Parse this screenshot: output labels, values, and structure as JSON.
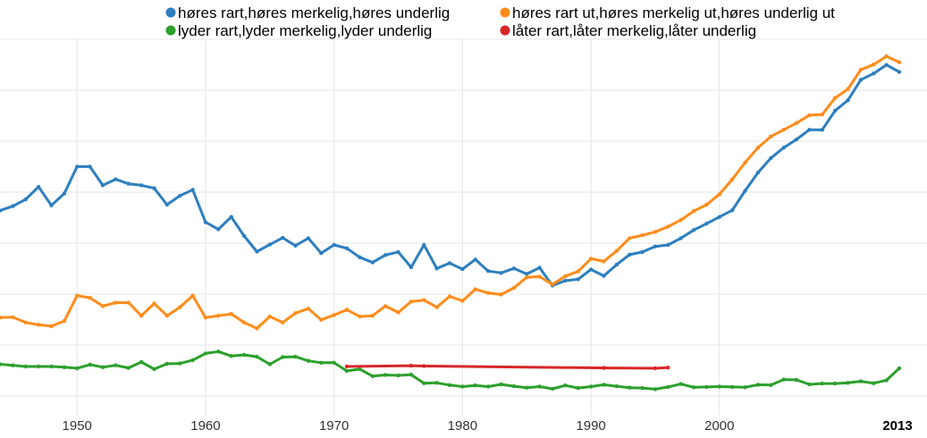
{
  "chart_data": {
    "type": "line",
    "title": "",
    "xlabel": "",
    "ylabel": "",
    "xlim": [
      1944,
      2014
    ],
    "ylim": [
      0,
      1
    ],
    "grid": true,
    "legend_placement": "top",
    "x_ticks": [
      1950,
      1960,
      1970,
      1980,
      1990,
      2000
    ],
    "x_tick_labels": [
      "1950",
      "1960",
      "1970",
      "1980",
      "1990",
      "2000"
    ],
    "x_last_label": "2013",
    "series": [
      {
        "name": "høres rart,høres merkelig,høres underlig",
        "color": "#2d7fbf",
        "points": [
          [
            1944,
            0.55
          ],
          [
            1945,
            0.562
          ],
          [
            1946,
            0.58
          ],
          [
            1947,
            0.614
          ],
          [
            1948,
            0.564
          ],
          [
            1949,
            0.596
          ],
          [
            1950,
            0.668
          ],
          [
            1951,
            0.668
          ],
          [
            1952,
            0.618
          ],
          [
            1953,
            0.634
          ],
          [
            1954,
            0.622
          ],
          [
            1955,
            0.618
          ],
          [
            1956,
            0.61
          ],
          [
            1957,
            0.566
          ],
          [
            1958,
            0.59
          ],
          [
            1959,
            0.606
          ],
          [
            1960,
            0.519
          ],
          [
            1961,
            0.5
          ],
          [
            1962,
            0.533
          ],
          [
            1963,
            0.482
          ],
          [
            1964,
            0.44
          ],
          [
            1965,
            0.459
          ],
          [
            1966,
            0.477
          ],
          [
            1967,
            0.456
          ],
          [
            1968,
            0.476
          ],
          [
            1969,
            0.436
          ],
          [
            1970,
            0.458
          ],
          [
            1971,
            0.449
          ],
          [
            1972,
            0.425
          ],
          [
            1973,
            0.411
          ],
          [
            1974,
            0.431
          ],
          [
            1975,
            0.439
          ],
          [
            1976,
            0.398
          ],
          [
            1977,
            0.458
          ],
          [
            1978,
            0.395
          ],
          [
            1979,
            0.409
          ],
          [
            1980,
            0.393
          ],
          [
            1981,
            0.419
          ],
          [
            1982,
            0.388
          ],
          [
            1983,
            0.383
          ],
          [
            1984,
            0.395
          ],
          [
            1985,
            0.38
          ],
          [
            1986,
            0.397
          ],
          [
            1987,
            0.349
          ],
          [
            1988,
            0.362
          ],
          [
            1989,
            0.366
          ],
          [
            1990,
            0.392
          ],
          [
            1991,
            0.375
          ],
          [
            1992,
            0.405
          ],
          [
            1993,
            0.432
          ],
          [
            1994,
            0.439
          ],
          [
            1995,
            0.454
          ],
          [
            1996,
            0.458
          ],
          [
            1997,
            0.476
          ],
          [
            1998,
            0.498
          ],
          [
            1999,
            0.515
          ],
          [
            2000,
            0.533
          ],
          [
            2001,
            0.551
          ],
          [
            2002,
            0.603
          ],
          [
            2003,
            0.652
          ],
          [
            2004,
            0.691
          ],
          [
            2005,
            0.719
          ],
          [
            2006,
            0.741
          ],
          [
            2007,
            0.767
          ],
          [
            2008,
            0.767
          ],
          [
            2009,
            0.818
          ],
          [
            2010,
            0.846
          ],
          [
            2011,
            0.901
          ],
          [
            2012,
            0.918
          ],
          [
            2013,
            0.941
          ],
          [
            2014,
            0.922
          ]
        ]
      },
      {
        "name": "høres rart ut,høres merkelig ut,høres underlig ut",
        "color": "#ff8c1a",
        "points": [
          [
            1944,
            0.263
          ],
          [
            1945,
            0.264
          ],
          [
            1946,
            0.25
          ],
          [
            1947,
            0.244
          ],
          [
            1948,
            0.24
          ],
          [
            1949,
            0.254
          ],
          [
            1950,
            0.322
          ],
          [
            1951,
            0.316
          ],
          [
            1952,
            0.294
          ],
          [
            1953,
            0.303
          ],
          [
            1954,
            0.303
          ],
          [
            1955,
            0.268
          ],
          [
            1956,
            0.301
          ],
          [
            1957,
            0.268
          ],
          [
            1958,
            0.291
          ],
          [
            1959,
            0.322
          ],
          [
            1960,
            0.263
          ],
          [
            1961,
            0.268
          ],
          [
            1962,
            0.273
          ],
          [
            1963,
            0.25
          ],
          [
            1964,
            0.234
          ],
          [
            1965,
            0.266
          ],
          [
            1966,
            0.25
          ],
          [
            1967,
            0.275
          ],
          [
            1968,
            0.287
          ],
          [
            1969,
            0.257
          ],
          [
            1970,
            0.27
          ],
          [
            1971,
            0.284
          ],
          [
            1972,
            0.266
          ],
          [
            1973,
            0.268
          ],
          [
            1974,
            0.294
          ],
          [
            1975,
            0.277
          ],
          [
            1976,
            0.306
          ],
          [
            1977,
            0.31
          ],
          [
            1978,
            0.291
          ],
          [
            1979,
            0.32
          ],
          [
            1980,
            0.308
          ],
          [
            1981,
            0.339
          ],
          [
            1982,
            0.329
          ],
          [
            1983,
            0.325
          ],
          [
            1984,
            0.343
          ],
          [
            1985,
            0.371
          ],
          [
            1986,
            0.373
          ],
          [
            1987,
            0.352
          ],
          [
            1988,
            0.374
          ],
          [
            1989,
            0.387
          ],
          [
            1990,
            0.421
          ],
          [
            1991,
            0.414
          ],
          [
            1992,
            0.442
          ],
          [
            1993,
            0.476
          ],
          [
            1994,
            0.484
          ],
          [
            1995,
            0.493
          ],
          [
            1996,
            0.507
          ],
          [
            1997,
            0.525
          ],
          [
            1998,
            0.549
          ],
          [
            1999,
            0.566
          ],
          [
            2000,
            0.594
          ],
          [
            2001,
            0.634
          ],
          [
            2002,
            0.679
          ],
          [
            2003,
            0.719
          ],
          [
            2004,
            0.749
          ],
          [
            2005,
            0.767
          ],
          [
            2006,
            0.785
          ],
          [
            2007,
            0.806
          ],
          [
            2008,
            0.808
          ],
          [
            2009,
            0.852
          ],
          [
            2010,
            0.876
          ],
          [
            2011,
            0.928
          ],
          [
            2012,
            0.942
          ],
          [
            2013,
            0.964
          ],
          [
            2014,
            0.948
          ]
        ]
      },
      {
        "name": "lyder rart,lyder merkelig,lyder underlig",
        "color": "#2ca02c",
        "points": [
          [
            1944,
            0.138
          ],
          [
            1945,
            0.135
          ],
          [
            1946,
            0.132
          ],
          [
            1947,
            0.132
          ],
          [
            1948,
            0.132
          ],
          [
            1949,
            0.13
          ],
          [
            1950,
            0.127
          ],
          [
            1951,
            0.137
          ],
          [
            1952,
            0.13
          ],
          [
            1953,
            0.135
          ],
          [
            1954,
            0.128
          ],
          [
            1955,
            0.144
          ],
          [
            1956,
            0.125
          ],
          [
            1957,
            0.139
          ],
          [
            1958,
            0.14
          ],
          [
            1959,
            0.149
          ],
          [
            1960,
            0.167
          ],
          [
            1961,
            0.172
          ],
          [
            1962,
            0.16
          ],
          [
            1963,
            0.163
          ],
          [
            1964,
            0.158
          ],
          [
            1965,
            0.138
          ],
          [
            1966,
            0.157
          ],
          [
            1967,
            0.158
          ],
          [
            1968,
            0.147
          ],
          [
            1969,
            0.142
          ],
          [
            1970,
            0.142
          ],
          [
            1971,
            0.12
          ],
          [
            1972,
            0.125
          ],
          [
            1973,
            0.106
          ],
          [
            1974,
            0.109
          ],
          [
            1975,
            0.108
          ],
          [
            1976,
            0.11
          ],
          [
            1977,
            0.087
          ],
          [
            1978,
            0.088
          ],
          [
            1979,
            0.082
          ],
          [
            1980,
            0.078
          ],
          [
            1981,
            0.081
          ],
          [
            1982,
            0.078
          ],
          [
            1983,
            0.084
          ],
          [
            1984,
            0.079
          ],
          [
            1985,
            0.075
          ],
          [
            1986,
            0.078
          ],
          [
            1987,
            0.072
          ],
          [
            1988,
            0.081
          ],
          [
            1989,
            0.074
          ],
          [
            1990,
            0.078
          ],
          [
            1991,
            0.083
          ],
          [
            1992,
            0.079
          ],
          [
            1993,
            0.075
          ],
          [
            1994,
            0.074
          ],
          [
            1995,
            0.071
          ],
          [
            1996,
            0.077
          ],
          [
            1997,
            0.085
          ],
          [
            1998,
            0.076
          ],
          [
            1999,
            0.077
          ],
          [
            2000,
            0.078
          ],
          [
            2001,
            0.077
          ],
          [
            2002,
            0.076
          ],
          [
            2003,
            0.083
          ],
          [
            2004,
            0.082
          ],
          [
            2005,
            0.097
          ],
          [
            2006,
            0.096
          ],
          [
            2007,
            0.084
          ],
          [
            2008,
            0.086
          ],
          [
            2009,
            0.086
          ],
          [
            2010,
            0.088
          ],
          [
            2011,
            0.092
          ],
          [
            2012,
            0.087
          ],
          [
            2013,
            0.095
          ],
          [
            2014,
            0.127
          ]
        ]
      },
      {
        "name": "låter rart,låter merkelig,låter underlig",
        "color": "#d62728",
        "points": [
          [
            1971,
            0.132
          ],
          [
            1976,
            0.134
          ],
          [
            1977,
            0.133
          ],
          [
            1991,
            0.128
          ],
          [
            1995,
            0.127
          ],
          [
            1996,
            0.129
          ]
        ]
      }
    ]
  }
}
